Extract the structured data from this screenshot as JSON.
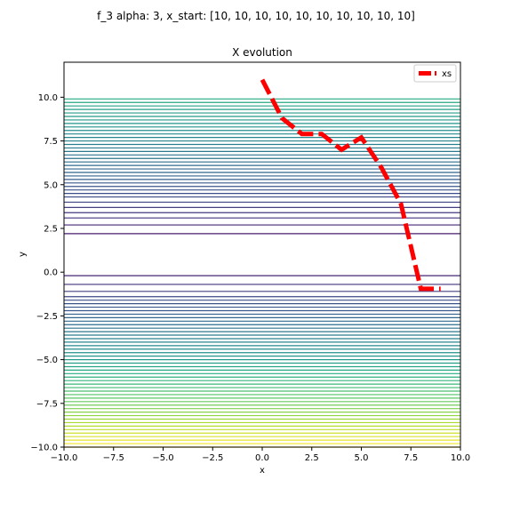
{
  "figure": {
    "suptitle": "f_3 alpha: 3, x_start: [10, 10, 10, 10, 10, 10, 10, 10, 10, 10]"
  },
  "chart_data": {
    "type": "line",
    "title": "X evolution",
    "xlabel": "x",
    "ylabel": "y",
    "xlim": [
      -10,
      10
    ],
    "ylim": [
      -10,
      12
    ],
    "grid": false,
    "legend_placement": "top-right",
    "x_ticks": [
      -10.0,
      -7.5,
      -5.0,
      -2.5,
      0.0,
      2.5,
      5.0,
      7.5,
      10.0
    ],
    "x_tick_labels": [
      "−10.0",
      "−7.5",
      "−5.0",
      "−2.5",
      "0.0",
      "2.5",
      "5.0",
      "7.5",
      "10.0"
    ],
    "y_ticks": [
      -10.0,
      -7.5,
      -5.0,
      -2.5,
      0.0,
      2.5,
      5.0,
      7.5,
      10.0
    ],
    "y_tick_labels": [
      "−10.0",
      "−7.5",
      "−5.0",
      "−2.5",
      "0.0",
      "2.5",
      "5.0",
      "7.5",
      "10.0"
    ],
    "series": [
      {
        "name": "xs",
        "color": "#ff0000",
        "style": "dashed",
        "x": [
          0,
          1,
          2,
          3,
          4,
          5,
          6,
          7,
          8,
          9
        ],
        "y": [
          11,
          8.8,
          7.9,
          7.9,
          7.0,
          7.7,
          6.0,
          3.9,
          -0.95,
          -0.95
        ]
      }
    ],
    "contour": {
      "type": "contour",
      "x_range": [
        -10,
        10
      ],
      "y_range": [
        -10,
        10
      ],
      "colormap": "viridis",
      "levels_y": [
        -10.0,
        -9.8,
        -9.6,
        -9.4,
        -9.2,
        -9.0,
        -8.8,
        -8.6,
        -8.4,
        -8.2,
        -8.0,
        -7.8,
        -7.6,
        -7.4,
        -7.2,
        -7.0,
        -6.8,
        -6.6,
        -6.4,
        -6.2,
        -6.0,
        -5.8,
        -5.6,
        -5.4,
        -5.2,
        -5.0,
        -4.8,
        -4.6,
        -4.4,
        -4.2,
        -4.0,
        -3.8,
        -3.6,
        -3.4,
        -3.2,
        -3.0,
        -2.8,
        -2.6,
        -2.4,
        -2.2,
        -2.0,
        -1.8,
        -1.6,
        -1.4,
        -1.1,
        -0.7,
        -0.2,
        2.2,
        2.7,
        3.1,
        3.4,
        3.7,
        4.0,
        4.3,
        4.5,
        4.7,
        4.9,
        5.1,
        5.3,
        5.5,
        5.7,
        5.9,
        6.1,
        6.3,
        6.5,
        6.7,
        6.9,
        7.1,
        7.3,
        7.5,
        7.7,
        7.9,
        8.1,
        8.3,
        8.5,
        8.7,
        8.9,
        9.1,
        9.3,
        9.5,
        9.7,
        9.9
      ]
    }
  }
}
